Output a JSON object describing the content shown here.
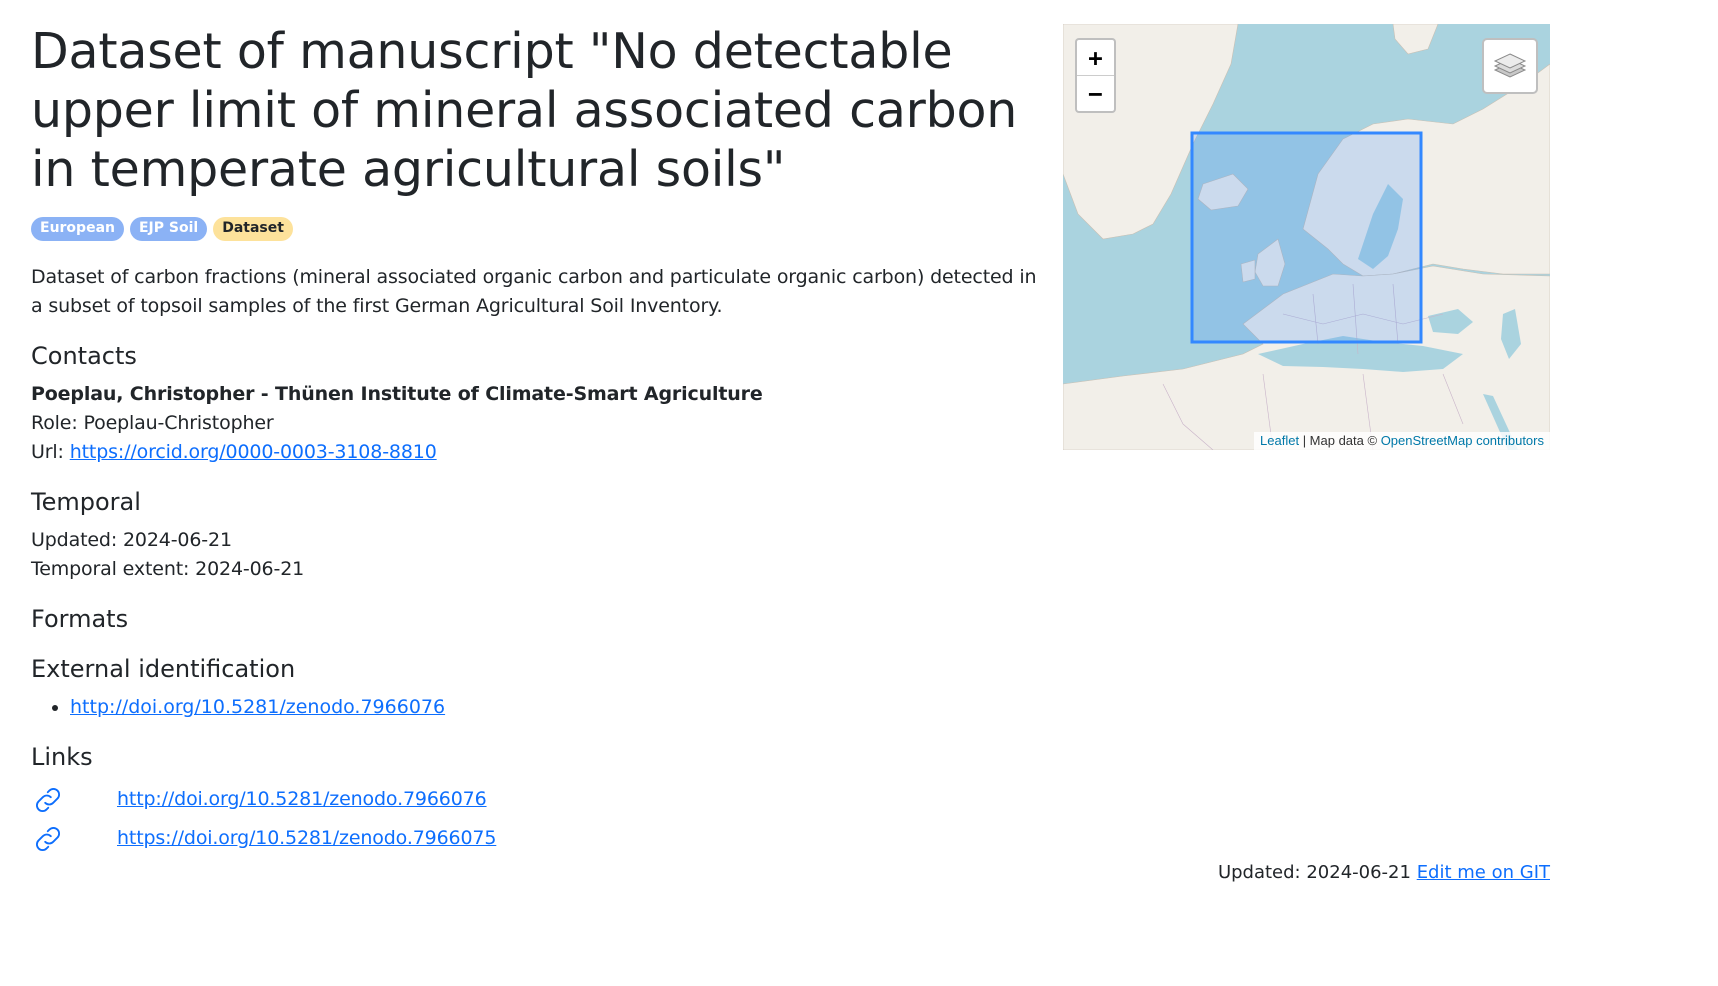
{
  "record": {
    "title": "Dataset of manuscript \"No detectable upper limit of mineral associated carbon in temperate agricultural soils\"",
    "badges": [
      {
        "label": "European",
        "color": "#8bb2f5"
      },
      {
        "label": "EJP Soil",
        "color": "#8bb2f5"
      },
      {
        "label": "Dataset",
        "color": "#fde29b"
      }
    ],
    "abstract": "Dataset of carbon fractions (mineral associated organic carbon and particulate organic carbon) detected in a subset of topsoil samples of the first German Agricultural Soil Inventory."
  },
  "contacts": {
    "heading": "Contacts",
    "name": "Poeplau, Christopher - Thünen Institute of Climate-Smart Agriculture",
    "role_label": "Role: ",
    "role": "Poeplau-Christopher",
    "url_label": "Url: ",
    "url": "https://orcid.org/0000-0003-3108-8810"
  },
  "temporal": {
    "heading": "Temporal",
    "updated_label": "Updated: ",
    "updated": "2024-06-21",
    "extent_label": "Temporal extent: ",
    "extent": "2024-06-21"
  },
  "formats": {
    "heading": "Formats"
  },
  "external_identification": {
    "heading": "External identification",
    "items": [
      "http://doi.org/10.5281/zenodo.7966076"
    ]
  },
  "links": {
    "heading": "Links",
    "icon": "link-icon",
    "items": [
      "http://doi.org/10.5281/zenodo.7966076",
      "https://doi.org/10.5281/zenodo.7966075"
    ]
  },
  "map": {
    "zoom_in": "+",
    "zoom_out": "−",
    "layers_icon": "layers-icon",
    "attribution": {
      "leaflet": "Leaflet",
      "separator": " | Map data © ",
      "osm": "OpenStreetMap contributors"
    },
    "bbox_color": "#3388ff"
  },
  "footer": {
    "updated_label": "Updated: ",
    "updated": "2024-06-21",
    "edit_link": "Edit me on GIT"
  }
}
